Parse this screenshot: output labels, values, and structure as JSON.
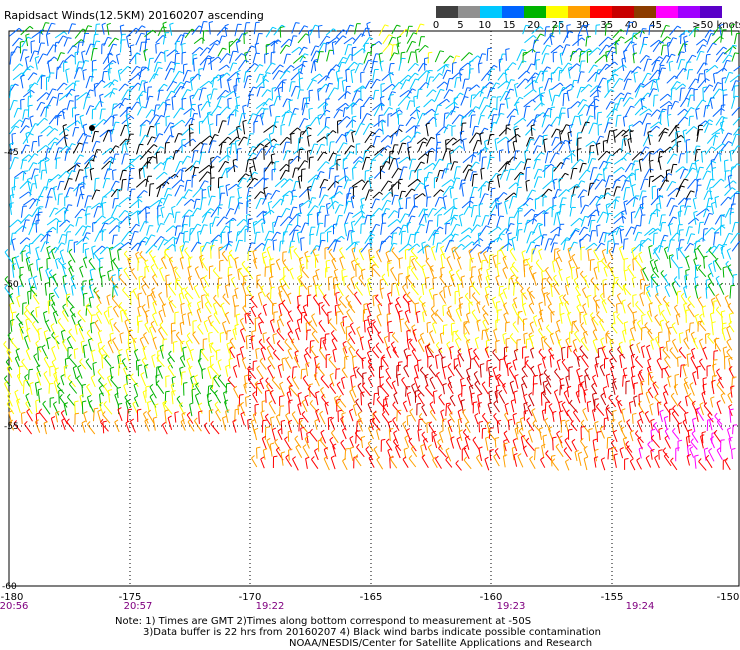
{
  "title": "Rapidsact Winds(12.5KM) 20160207 ascending",
  "legend": {
    "labels": [
      "0",
      "5",
      "10",
      "15",
      "20",
      "25",
      "30",
      "35",
      "40",
      "45",
      ">50 knots"
    ],
    "colors": [
      "#404040",
      "#909090",
      "#00c8ff",
      "#0064ff",
      "#00b400",
      "#ffff00",
      "#ffa000",
      "#ff0000",
      "#c80000",
      "#8c3c00",
      "#ff00ff",
      "#a000ff",
      "#5a00c8"
    ]
  },
  "axes": {
    "lon_ticks": [
      "-180",
      "-175",
      "-170",
      "-165",
      "-160",
      "-155",
      "-150"
    ],
    "lat_ticks": [
      "-45",
      "-50",
      "-55"
    ],
    "lat_bottom": "-60",
    "times": [
      "20:56",
      "20:57",
      "19:22",
      "19:23",
      "19:24"
    ]
  },
  "notes": [
    "Note: 1) Times are GMT 2)Times along bottom correspond to measurement at -50S",
    "3)Data buffer is 22 hrs from 20160207 4) Black wind barbs indicate possible contamination",
    "NOAA/NESDIS/Center for Satellite Applications and Research"
  ]
}
